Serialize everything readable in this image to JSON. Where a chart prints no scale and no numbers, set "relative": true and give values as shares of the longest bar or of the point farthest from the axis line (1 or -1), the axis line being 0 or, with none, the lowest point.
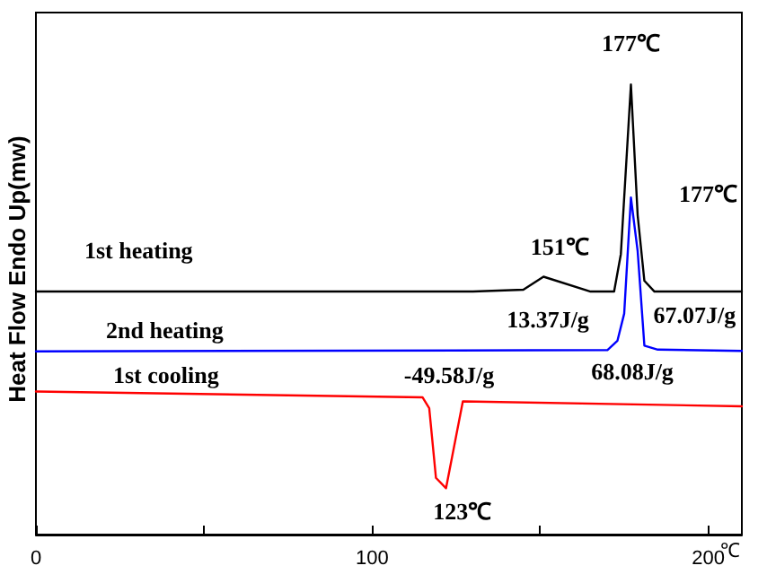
{
  "chart_data": {
    "type": "line",
    "relative": true,
    "xlabel": "℃",
    "ylabel": "Heat Flow Endo Up(mw)",
    "xlim": [
      0,
      210
    ],
    "xticks": [
      0,
      {
        "value": 50,
        "label": null
      },
      100,
      {
        "value": 150,
        "label": null
      },
      200
    ],
    "tick_labels": "x",
    "grid": false,
    "marker": "none",
    "line_style": "solid",
    "series": [
      {
        "name": "1st heating",
        "color": "#000000",
        "x": [
          0,
          130,
          145,
          151,
          165,
          172,
          174,
          177,
          179,
          181,
          184,
          210
        ],
        "values": [
          0.54,
          0.54,
          0.544,
          0.573,
          0.54,
          0.54,
          0.623,
          1,
          0.71,
          0.564,
          0.54,
          0.54
        ]
      },
      {
        "name": "2nd heating",
        "color": "#0000ff",
        "x": [
          0,
          170,
          173,
          175,
          177,
          179,
          181,
          185,
          210
        ],
        "values": [
          0.407,
          0.41,
          0.431,
          0.491,
          0.749,
          0.63,
          0.42,
          0.411,
          0.408
        ]
      },
      {
        "name": "1st cooling",
        "color": "#ff0000",
        "x": [
          0,
          115,
          117,
          119,
          122,
          127,
          210
        ],
        "values": [
          0.318,
          0.305,
          0.281,
          0.126,
          0.103,
          0.296,
          0.285
        ]
      }
    ],
    "annotations": [
      {
        "text": "177℃",
        "x": 177,
        "y": 1
      },
      {
        "text": "177℃",
        "x": 177,
        "y": 0.749
      },
      {
        "text": "151℃",
        "x": 151,
        "y": 0.573
      },
      "13.37J/g",
      {
        "text": "67.07J/g",
        "x": 181,
        "y": 0.564
      },
      "68.08J/g",
      "-49.58J/g",
      {
        "text": "123℃",
        "x": 122,
        "y": 0.103
      }
    ]
  }
}
